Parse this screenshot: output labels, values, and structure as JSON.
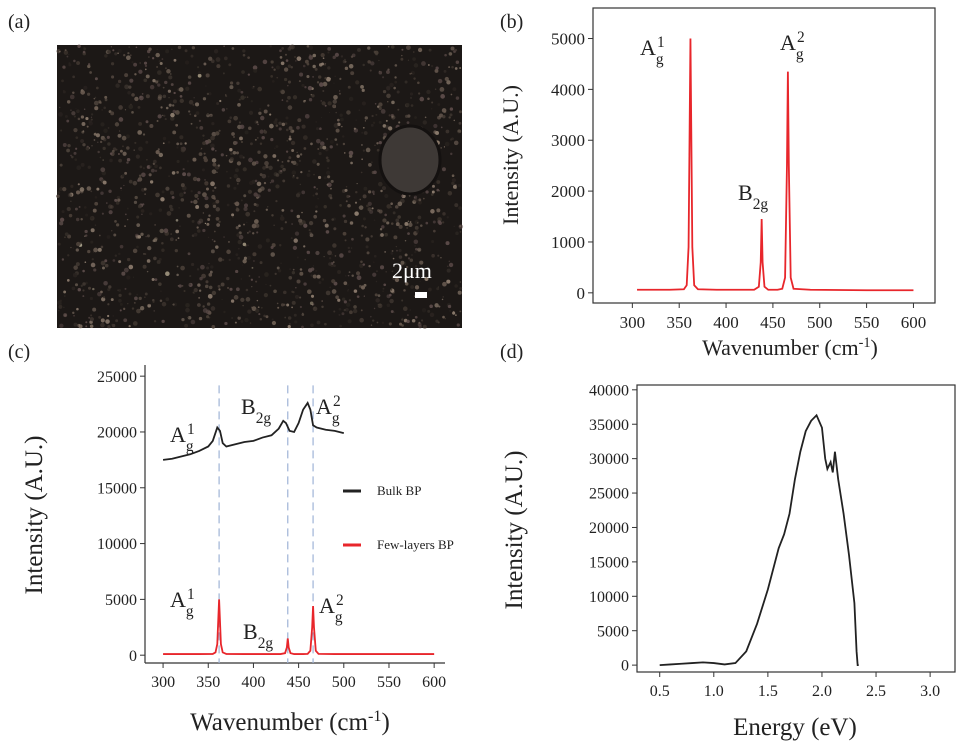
{
  "panels": {
    "a": "(a)",
    "b": "(b)",
    "c": "(c)",
    "d": "(d)"
  },
  "image": {
    "scale_bar": "2μm"
  },
  "chart_data": [
    {
      "type": "line",
      "ylabel": "Intensity (A.U.)",
      "xlabel": {
        "text": "Wavenumber (cm",
        "sup": "-1",
        "close": ")"
      },
      "xlim": [
        258,
        623
      ],
      "ylim": [
        -200,
        5600
      ],
      "xticks": [
        300,
        350,
        400,
        450,
        500,
        550,
        600
      ],
      "yticks": [
        0,
        1000,
        2000,
        3000,
        4000,
        5000
      ],
      "series": [
        {
          "color": "#e8262b",
          "x": [
            305,
            340,
            355,
            358,
            360,
            362,
            364,
            366,
            370,
            390,
            430,
            435,
            437,
            438,
            439,
            441,
            445,
            455,
            460,
            463,
            465,
            466,
            467,
            469,
            472,
            490,
            550,
            600
          ],
          "values": [
            60,
            60,
            70,
            150,
            900,
            5000,
            900,
            150,
            70,
            60,
            60,
            120,
            600,
            1450,
            600,
            120,
            60,
            60,
            80,
            300,
            2500,
            4350,
            2500,
            300,
            80,
            60,
            50,
            50
          ]
        }
      ],
      "annotations": [
        {
          "base": "A",
          "sub": "g",
          "sup": "1"
        },
        {
          "base": "B",
          "sub": "2g"
        },
        {
          "base": "A",
          "sub": "g",
          "sup": "2"
        }
      ]
    },
    {
      "type": "line",
      "ylabel": "Intensity (A.U.)",
      "xlabel": {
        "text": "Wavenumber (cm",
        "sup": "-1",
        "close": ")"
      },
      "xlim": [
        280,
        612
      ],
      "ylim": [
        -700,
        26000
      ],
      "xticks": [
        300,
        350,
        400,
        450,
        500,
        550,
        600
      ],
      "yticks": [
        0,
        5000,
        10000,
        15000,
        20000,
        25000
      ],
      "guides": [
        362,
        438,
        466
      ],
      "series": [
        {
          "name": "Bulk BP",
          "color": "#222222",
          "x": [
            300,
            310,
            320,
            330,
            340,
            350,
            355,
            360,
            363,
            366,
            370,
            380,
            390,
            400,
            410,
            420,
            428,
            433,
            436,
            440,
            445,
            450,
            455,
            460,
            463,
            466,
            470,
            480,
            490,
            500
          ],
          "values": [
            17500,
            17600,
            17800,
            18000,
            18300,
            18700,
            19200,
            20400,
            20100,
            19000,
            18700,
            18900,
            19100,
            19200,
            19500,
            19700,
            20300,
            21000,
            20800,
            20100,
            20000,
            20800,
            22000,
            22600,
            22000,
            20600,
            20400,
            20200,
            20100,
            19900
          ]
        },
        {
          "name": "Few-layers BP",
          "color": "#e8262b",
          "x": [
            300,
            340,
            355,
            358,
            360,
            362,
            364,
            366,
            370,
            390,
            430,
            435,
            437,
            438,
            439,
            441,
            445,
            455,
            460,
            463,
            465,
            466,
            467,
            469,
            472,
            490,
            550,
            600
          ],
          "values": [
            100,
            100,
            110,
            250,
            1000,
            5000,
            1000,
            250,
            110,
            100,
            100,
            180,
            700,
            1500,
            700,
            180,
            100,
            100,
            120,
            400,
            2500,
            4400,
            2500,
            400,
            120,
            100,
            100,
            100
          ]
        }
      ],
      "annotations": [
        {
          "base": "A",
          "sub": "g",
          "sup": "1"
        },
        {
          "base": "B",
          "sub": "2g"
        },
        {
          "base": "A",
          "sub": "g",
          "sup": "2"
        },
        {
          "base": "A",
          "sub": "g",
          "sup": "1"
        },
        {
          "base": "B",
          "sub": "2g"
        },
        {
          "base": "A",
          "sub": "g",
          "sup": "2"
        }
      ]
    },
    {
      "type": "line",
      "ylabel": "Intensity (A.U.)",
      "xlabel": {
        "text": "Energy (eV)"
      },
      "xlim": [
        0.29,
        3.23
      ],
      "ylim": [
        -1000,
        40700
      ],
      "xticks": [
        0.5,
        {
          "value": 1,
          "label": "1.0"
        },
        1.5,
        {
          "value": 2,
          "label": "2.0"
        },
        2.5,
        {
          "value": 3,
          "label": "3.0"
        }
      ],
      "yticks": [
        0,
        5000,
        10000,
        15000,
        20000,
        25000,
        30000,
        35000,
        40000
      ],
      "series": [
        {
          "color": "#222222",
          "x": [
            0.5,
            0.6,
            0.7,
            0.8,
            0.9,
            1.0,
            1.1,
            1.2,
            1.3,
            1.4,
            1.5,
            1.6,
            1.65,
            1.7,
            1.75,
            1.8,
            1.85,
            1.9,
            1.95,
            2.0,
            2.03,
            2.05,
            2.08,
            2.1,
            2.12,
            2.15,
            2.2,
            2.25,
            2.3,
            2.32,
            2.33,
            2.34
          ],
          "values": [
            0,
            100,
            200,
            300,
            400,
            300,
            100,
            300,
            2000,
            6000,
            11000,
            17000,
            19000,
            22000,
            27000,
            31000,
            34000,
            35500,
            36300,
            34500,
            30000,
            28500,
            29500,
            28000,
            31000,
            27000,
            22000,
            16000,
            9000,
            2000,
            0,
            0
          ]
        }
      ]
    }
  ]
}
